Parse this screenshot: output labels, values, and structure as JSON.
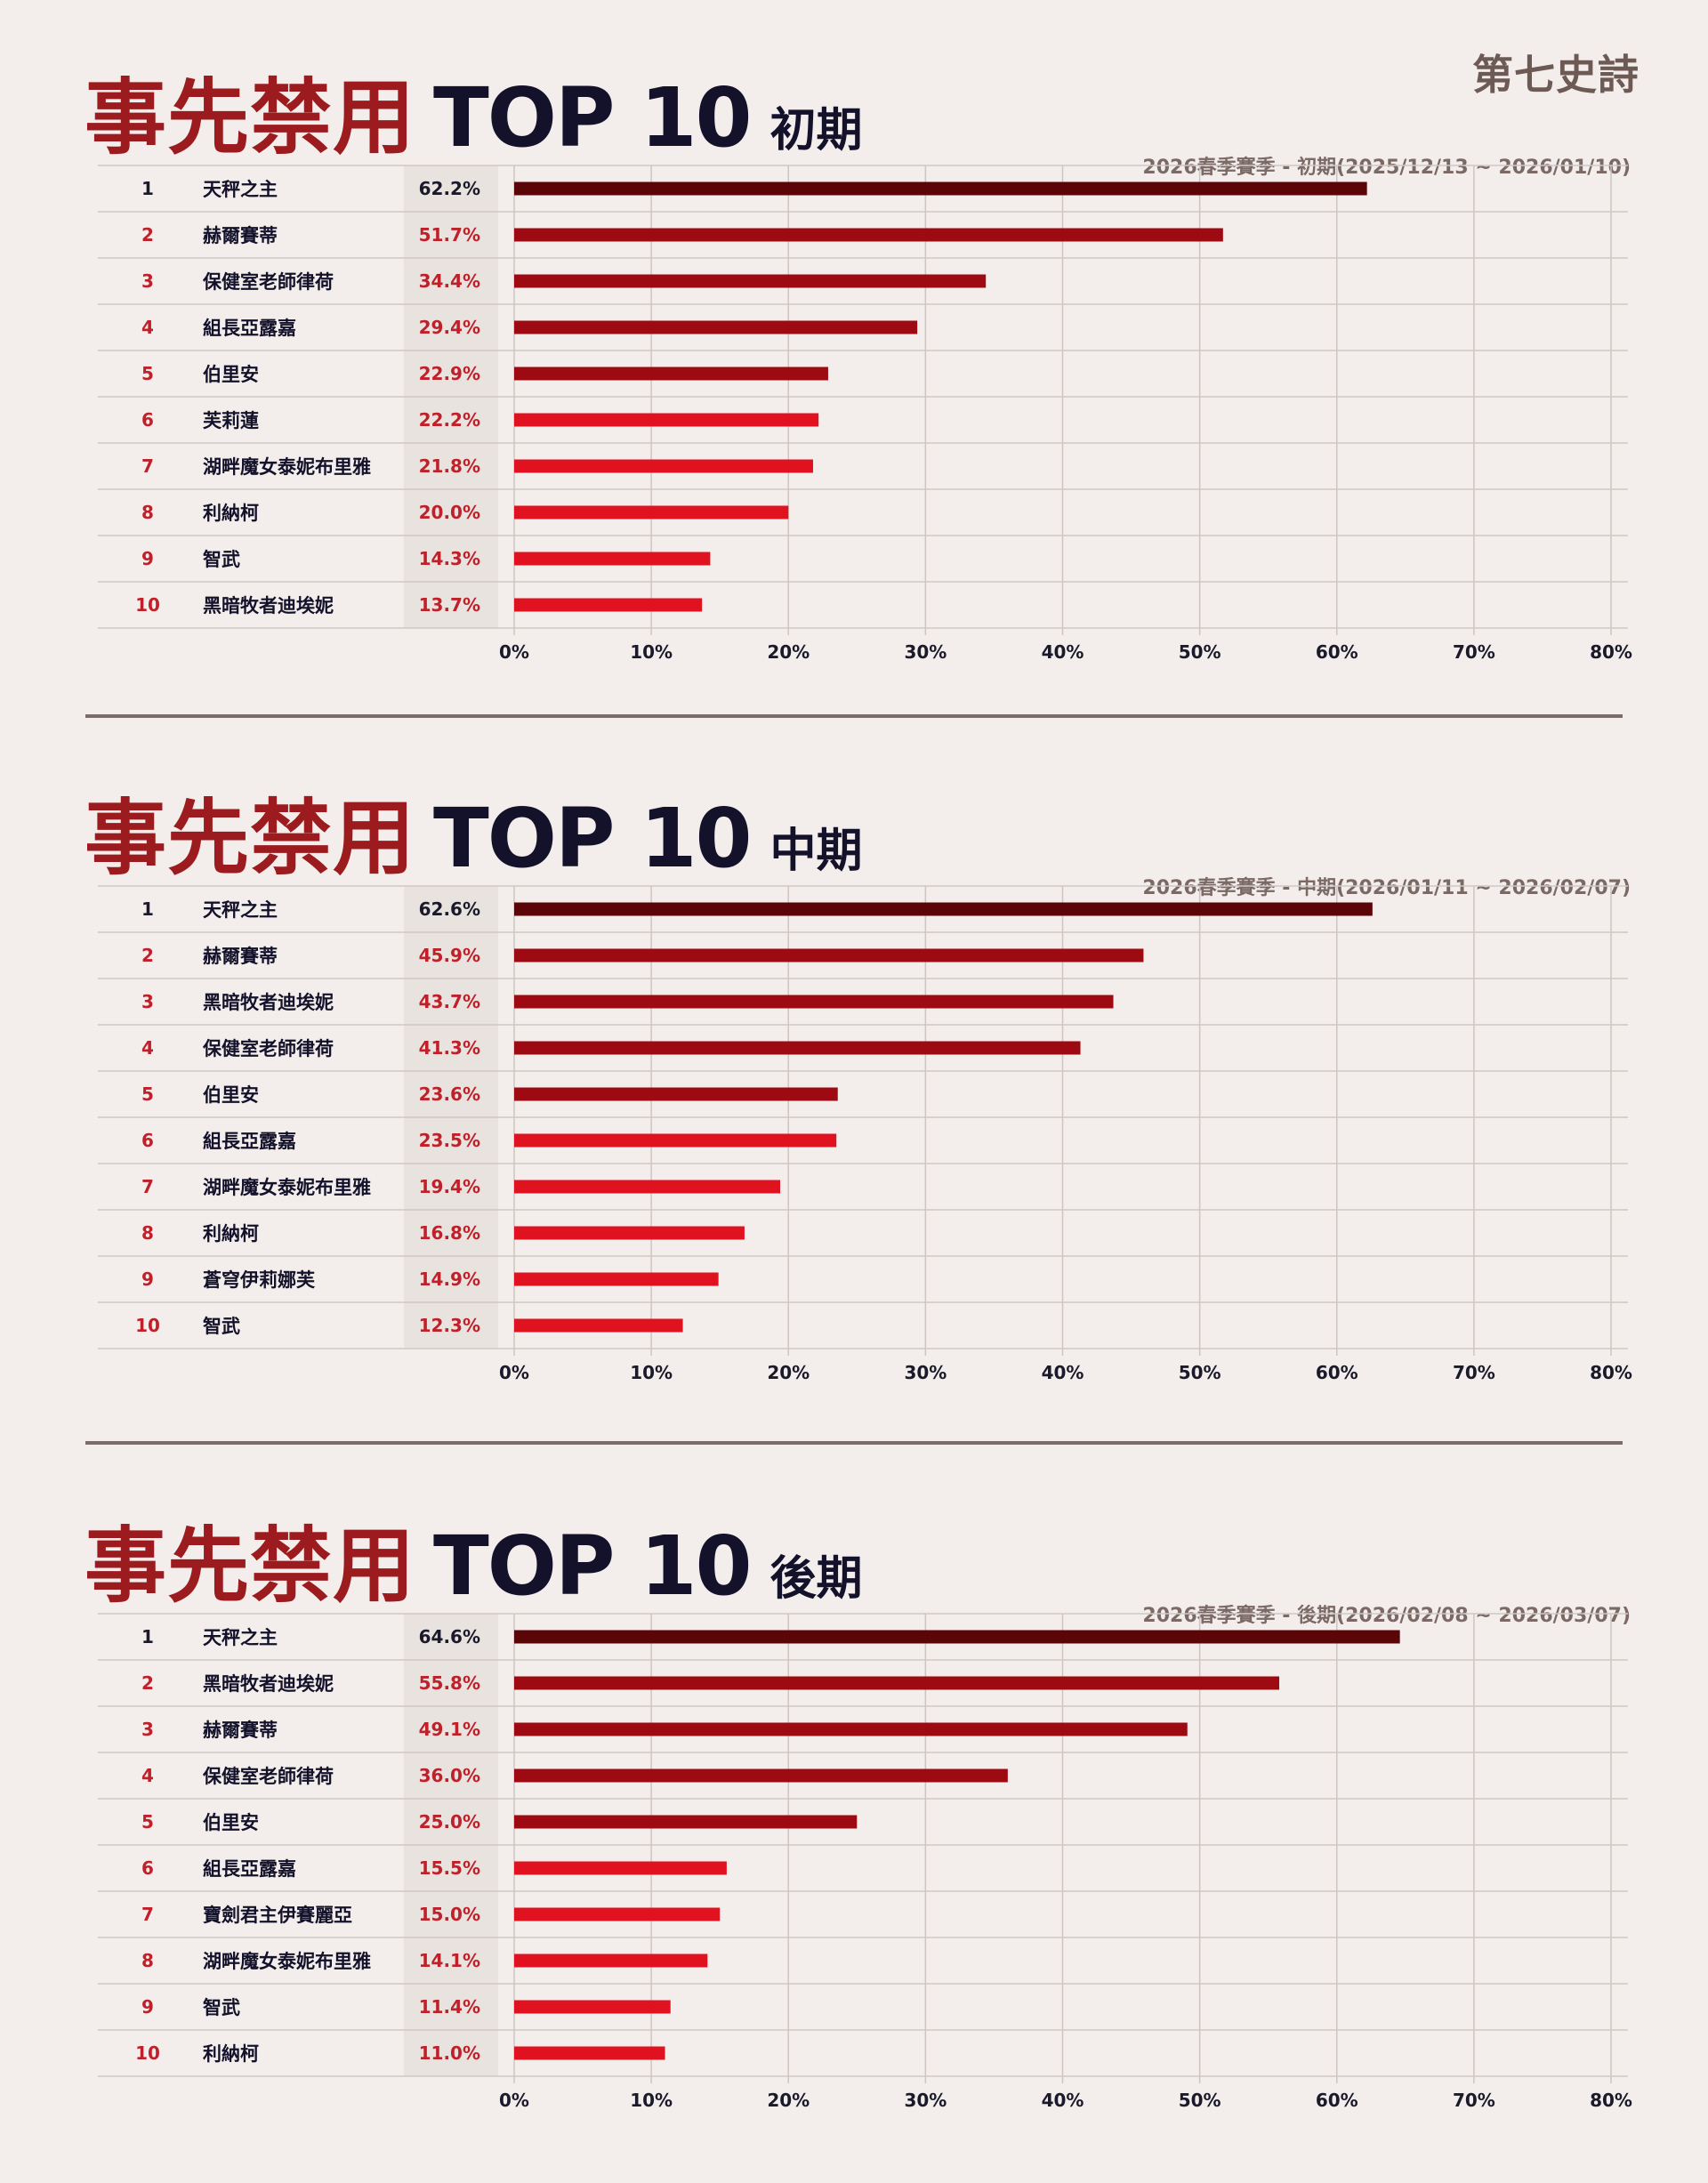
{
  "logo": "第七史詩",
  "sections": [
    {
      "title_main": "事先禁用",
      "title_top": "TOP 10",
      "phase": "初期",
      "subtitle": "2026春季賽季 - 初期(2025/12/13 ~ 2026/01/10)"
    },
    {
      "title_main": "事先禁用",
      "title_top": "TOP 10",
      "phase": "中期",
      "subtitle": "2026春季賽季 - 中期(2026/01/11 ~ 2026/02/07)"
    },
    {
      "title_main": "事先禁用",
      "title_top": "TOP 10",
      "phase": "後期",
      "subtitle": "2026春季賽季 - 後期(2026/02/08 ~ 2026/03/07)"
    }
  ],
  "colors": {
    "darkest": "#5c0508",
    "dark": "#9e0a12",
    "bright": "#e0121f",
    "title_red": "#9b1b1e",
    "title_dark": "#14122b"
  },
  "chart_data": [
    {
      "type": "bar",
      "orientation": "horizontal",
      "ranks": [
        "1",
        "2",
        "3",
        "4",
        "5",
        "6",
        "7",
        "8",
        "9",
        "10"
      ],
      "categories": [
        "天秤之主",
        "赫爾賽蒂",
        "保健室老師律荷",
        "組長亞露嘉",
        "伯里安",
        "芙莉蓮",
        "湖畔魔女泰妮布里雅",
        "利納柯",
        "智武",
        "黑暗牧者迪埃妮"
      ],
      "values": [
        62.2,
        51.7,
        34.4,
        29.4,
        22.9,
        22.2,
        21.8,
        20.0,
        14.3,
        13.7
      ],
      "value_labels": [
        "62.2%",
        "51.7%",
        "34.4%",
        "29.4%",
        "22.9%",
        "22.2%",
        "21.8%",
        "20.0%",
        "14.3%",
        "13.7%"
      ],
      "xlim": [
        0,
        80
      ],
      "ticks": [
        "0%",
        "10%",
        "20%",
        "30%",
        "40%",
        "50%",
        "60%",
        "70%",
        "80%"
      ],
      "grid": true
    },
    {
      "type": "bar",
      "orientation": "horizontal",
      "ranks": [
        "1",
        "2",
        "3",
        "4",
        "5",
        "6",
        "7",
        "8",
        "9",
        "10"
      ],
      "categories": [
        "天秤之主",
        "赫爾賽蒂",
        "黑暗牧者迪埃妮",
        "保健室老師律荷",
        "伯里安",
        "組長亞露嘉",
        "湖畔魔女泰妮布里雅",
        "利納柯",
        "蒼穹伊莉娜芙",
        "智武"
      ],
      "values": [
        62.6,
        45.9,
        43.7,
        41.3,
        23.6,
        23.5,
        19.4,
        16.8,
        14.9,
        12.3
      ],
      "value_labels": [
        "62.6%",
        "45.9%",
        "43.7%",
        "41.3%",
        "23.6%",
        "23.5%",
        "19.4%",
        "16.8%",
        "14.9%",
        "12.3%"
      ],
      "xlim": [
        0,
        80
      ],
      "ticks": [
        "0%",
        "10%",
        "20%",
        "30%",
        "40%",
        "50%",
        "60%",
        "70%",
        "80%"
      ],
      "grid": true
    },
    {
      "type": "bar",
      "orientation": "horizontal",
      "ranks": [
        "1",
        "2",
        "3",
        "4",
        "5",
        "6",
        "7",
        "8",
        "9",
        "10"
      ],
      "categories": [
        "天秤之主",
        "黑暗牧者迪埃妮",
        "赫爾賽蒂",
        "保健室老師律荷",
        "伯里安",
        "組長亞露嘉",
        "寶劍君主伊賽麗亞",
        "湖畔魔女泰妮布里雅",
        "智武",
        "利納柯"
      ],
      "values": [
        64.6,
        55.8,
        49.1,
        36.0,
        25.0,
        15.5,
        15.0,
        14.1,
        11.4,
        11.0
      ],
      "value_labels": [
        "64.6%",
        "55.8%",
        "49.1%",
        "36.0%",
        "25.0%",
        "15.5%",
        "15.0%",
        "14.1%",
        "11.4%",
        "11.0%"
      ],
      "xlim": [
        0,
        80
      ],
      "ticks": [
        "0%",
        "10%",
        "20%",
        "30%",
        "40%",
        "50%",
        "60%",
        "70%",
        "80%"
      ],
      "grid": true
    }
  ]
}
